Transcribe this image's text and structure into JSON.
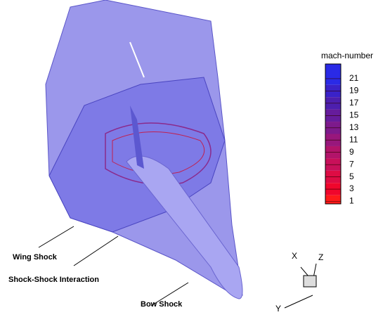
{
  "legend": {
    "title": "mach-number",
    "levels": [
      21,
      19,
      17,
      15,
      13,
      11,
      9,
      7,
      5,
      3,
      1
    ],
    "colors": [
      "#2a2ae6",
      "#3a22c8",
      "#4d1fae",
      "#661c9c",
      "#7d1a8c",
      "#98177c",
      "#b2146a",
      "#c8105a",
      "#de0c44",
      "#f0062c",
      "#ff1a1a"
    ],
    "ylim": [
      0.6,
      23.4
    ]
  },
  "annotations": [
    "Wing Shock",
    "Shock-Shock Interaction",
    "Bow Shock"
  ],
  "axes_triad": {
    "x": "X",
    "y": "Y",
    "z": "Z"
  }
}
